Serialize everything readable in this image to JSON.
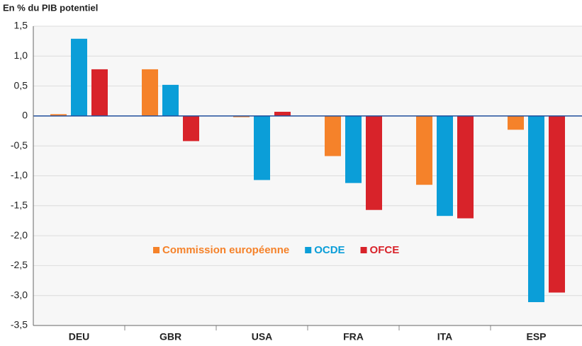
{
  "chart_data": {
    "type": "bar",
    "title": "En % du PIB potentiel",
    "categories": [
      "DEU",
      "GBR",
      "USA",
      "FRA",
      "ITA",
      "ESP"
    ],
    "series": [
      {
        "name": "Commission européenne",
        "color": "#f5822a",
        "values": [
          0.03,
          0.78,
          -0.02,
          -0.67,
          -1.15,
          -0.23
        ]
      },
      {
        "name": "OCDE",
        "color": "#0b9ed8",
        "values": [
          1.29,
          0.52,
          -1.07,
          -1.12,
          -1.67,
          -3.11
        ]
      },
      {
        "name": "OFCE",
        "color": "#d8232a",
        "values": [
          0.78,
          -0.42,
          0.07,
          -1.57,
          -1.71,
          -2.95
        ]
      }
    ],
    "ylim": [
      -3.5,
      1.5
    ],
    "yticks": [
      {
        "value": 1.5,
        "label": "1,5"
      },
      {
        "value": 1.0,
        "label": "1,0"
      },
      {
        "value": 0.5,
        "label": "0,5"
      },
      0,
      {
        "value": -0.5,
        "label": "-0,5"
      },
      {
        "value": -1.0,
        "label": "-1,0"
      },
      {
        "value": -1.5,
        "label": "-1,5"
      },
      {
        "value": -2.0,
        "label": "-2,0"
      },
      {
        "value": -2.5,
        "label": "-2,5"
      },
      {
        "value": -3.0,
        "label": "-3,0"
      },
      {
        "value": -3.5,
        "label": "-3,5"
      }
    ],
    "grid": true,
    "legend": "center"
  }
}
